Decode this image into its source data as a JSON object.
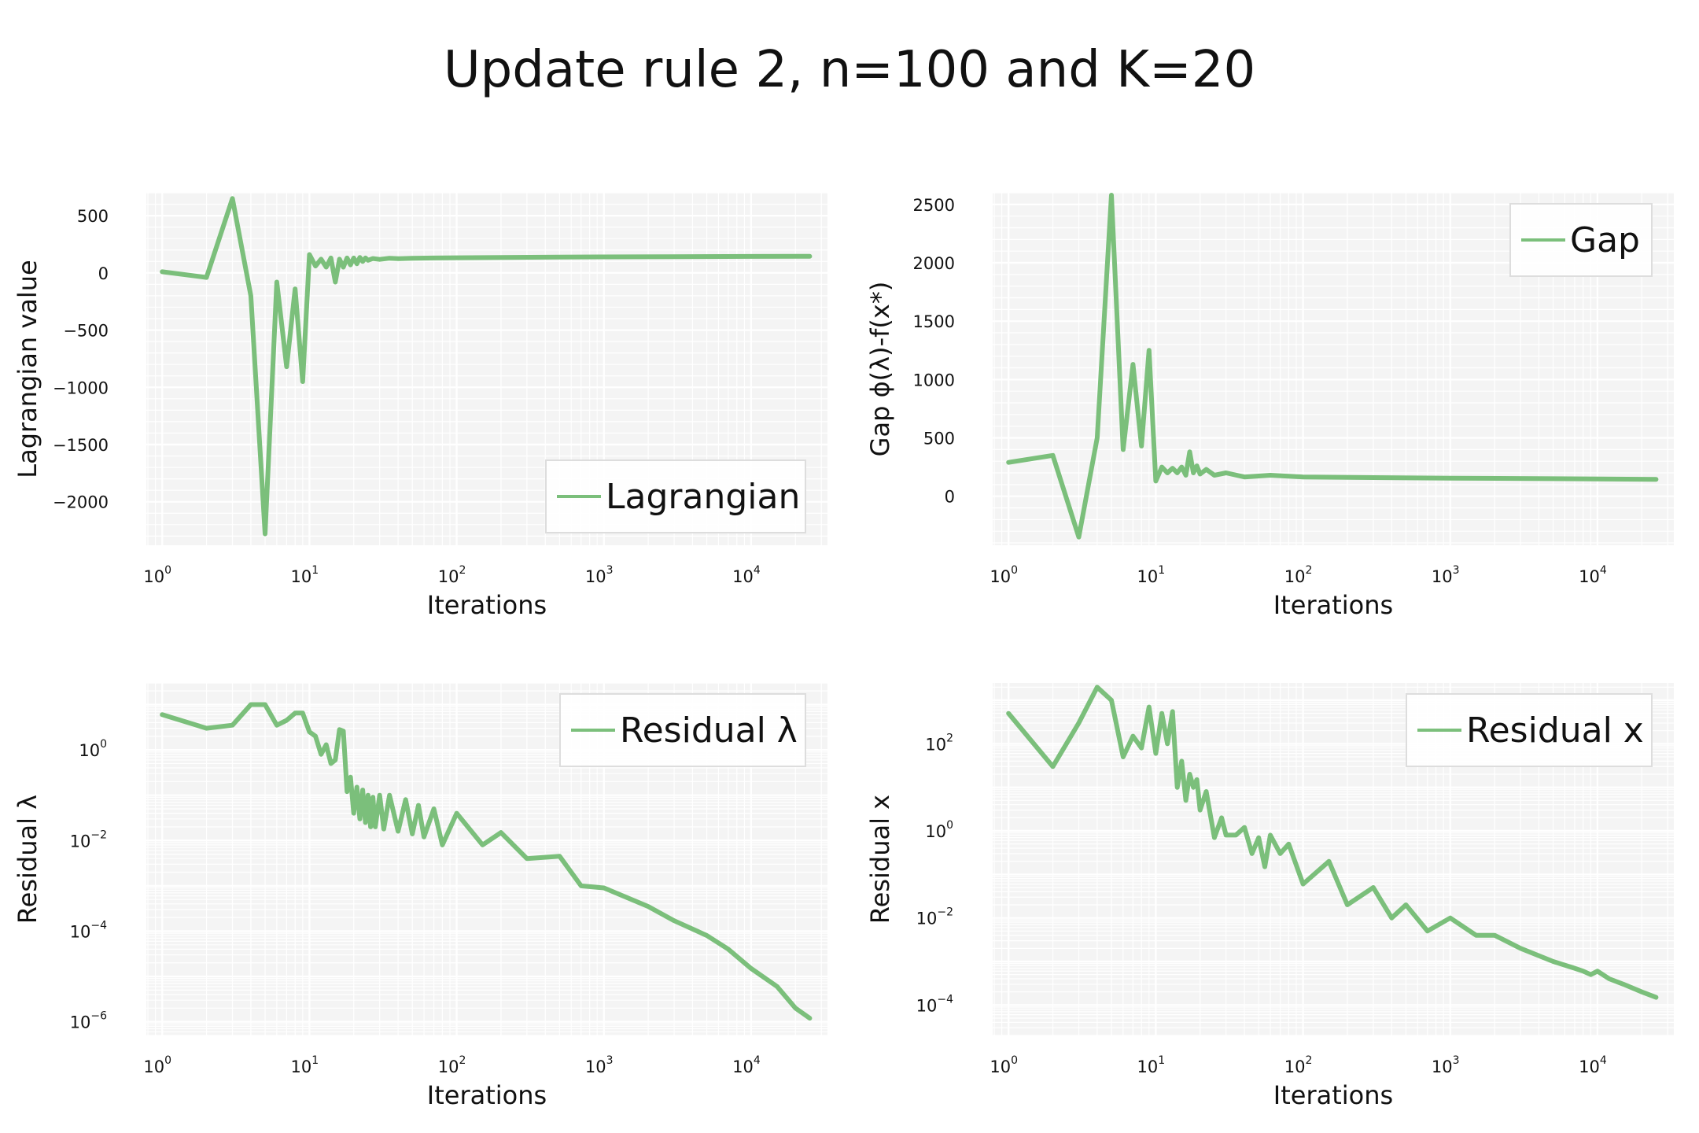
{
  "figure": {
    "title": "Update rule 2, n=100 and K=20"
  },
  "colors": {
    "line": "#7bbf7b",
    "plot_bg": "#f4f4f4",
    "grid": "#ffffff",
    "legend_edge": "#dddddd"
  },
  "chart_data": [
    {
      "type": "line",
      "xlabel": "Iterations",
      "ylabel": "Lagrangian value",
      "xscale": "log",
      "yscale": "linear",
      "xlim": [
        0.78,
        33000
      ],
      "ylim": [
        -2380,
        700
      ],
      "xticks": [
        1,
        10,
        100,
        1000,
        10000
      ],
      "yticks": [
        500,
        0,
        -500,
        -1000,
        -1500,
        -2000
      ],
      "ytick_labels": [
        "500",
        "0",
        "−5 0 0",
        "−1000",
        "−1500",
        "−2000"
      ],
      "grid": true,
      "legend_position": "lower-right",
      "series": [
        {
          "name": "Lagrangian",
          "x": [
            1,
            2,
            3,
            4,
            5,
            6,
            7,
            8,
            9,
            10,
            11,
            12,
            13,
            14,
            15,
            16,
            17,
            18,
            19,
            20,
            21,
            22,
            23,
            24,
            25,
            27,
            30,
            35,
            40,
            50,
            70,
            100,
            200,
            500,
            1000,
            3000,
            10000,
            25000
          ],
          "y": [
            10,
            -40,
            650,
            -200,
            -2280,
            -80,
            -820,
            -140,
            -950,
            160,
            60,
            120,
            50,
            130,
            -80,
            120,
            50,
            130,
            70,
            130,
            80,
            135,
            100,
            130,
            110,
            125,
            118,
            128,
            124,
            128,
            130,
            132,
            135,
            138,
            140,
            142,
            144,
            145
          ]
        }
      ]
    },
    {
      "type": "line",
      "xlabel": "Iterations",
      "ylabel": "Gap ϕ(λ)-f(x*)",
      "xscale": "log",
      "yscale": "linear",
      "xlim": [
        0.78,
        33000
      ],
      "ylim": [
        -420,
        2600
      ],
      "xticks": [
        1,
        10,
        100,
        1000,
        10000
      ],
      "yticks": [
        2500,
        2000,
        1500,
        1000,
        500,
        0
      ],
      "ytick_labels": [
        "2500",
        "2000",
        "1500",
        "1000",
        "500",
        "0"
      ],
      "grid": true,
      "legend_position": "upper-right",
      "series": [
        {
          "name": "Gap",
          "x": [
            1,
            2,
            3,
            4,
            5,
            6,
            7,
            8,
            9,
            10,
            11,
            12,
            13,
            14,
            15,
            16,
            17,
            18,
            19,
            20,
            22,
            25,
            30,
            40,
            60,
            100,
            300,
            1000,
            5000,
            25000
          ],
          "y": [
            290,
            350,
            -350,
            500,
            2580,
            400,
            1130,
            430,
            1250,
            130,
            250,
            200,
            240,
            200,
            250,
            180,
            380,
            200,
            260,
            190,
            230,
            180,
            200,
            165,
            180,
            165,
            160,
            155,
            150,
            145
          ]
        }
      ]
    },
    {
      "type": "line",
      "xlabel": "Iterations",
      "ylabel": "Residual λ",
      "xscale": "log",
      "yscale": "log",
      "xlim": [
        0.78,
        33000
      ],
      "ylim": [
        5e-07,
        30
      ],
      "xticks": [
        1,
        10,
        100,
        1000,
        10000
      ],
      "yticks": [
        1,
        0.01,
        0.0001,
        1e-06
      ],
      "grid": true,
      "legend_position": "upper-right",
      "series": [
        {
          "name": "Residual λ",
          "x": [
            1,
            2,
            3,
            4,
            5,
            6,
            7,
            8,
            9,
            10,
            11,
            12,
            13,
            14,
            15,
            16,
            17,
            18,
            19,
            20,
            21,
            22,
            23,
            24,
            25,
            26,
            27,
            28,
            30,
            32,
            35,
            40,
            45,
            50,
            55,
            60,
            70,
            80,
            100,
            150,
            200,
            300,
            500,
            700,
            1000,
            2000,
            3000,
            5000,
            7000,
            10000,
            15000,
            20000,
            25000
          ],
          "y": [
            6,
            3,
            3.5,
            10,
            10,
            3.5,
            4.5,
            6.5,
            6.5,
            2.5,
            2.0,
            0.8,
            1.3,
            0.5,
            0.6,
            2.8,
            2.6,
            0.12,
            0.25,
            0.04,
            0.15,
            0.03,
            0.13,
            0.025,
            0.1,
            0.02,
            0.09,
            0.02,
            0.1,
            0.018,
            0.1,
            0.016,
            0.08,
            0.014,
            0.06,
            0.012,
            0.05,
            0.008,
            0.04,
            0.008,
            0.015,
            0.004,
            0.0045,
            0.001,
            0.0009,
            0.00035,
            0.00017,
            8e-05,
            4e-05,
            1.5e-05,
            6e-06,
            2e-06,
            1.2e-06
          ]
        }
      ]
    },
    {
      "type": "line",
      "xlabel": "Iterations",
      "ylabel": "Residual x",
      "xscale": "log",
      "yscale": "log",
      "xlim": [
        0.78,
        33000
      ],
      "ylim": [
        2e-05,
        2500
      ],
      "xticks": [
        1,
        10,
        100,
        1000,
        10000
      ],
      "yticks": [
        100,
        1,
        0.01,
        0.0001
      ],
      "grid": true,
      "legend_position": "upper-right",
      "series": [
        {
          "name": "Residual x",
          "x": [
            1,
            2,
            3,
            4,
            5,
            6,
            7,
            8,
            9,
            10,
            11,
            12,
            13,
            14,
            15,
            16,
            17,
            18,
            19,
            20,
            22,
            25,
            28,
            30,
            35,
            40,
            45,
            50,
            55,
            60,
            70,
            80,
            100,
            150,
            200,
            300,
            400,
            500,
            700,
            1000,
            1500,
            2000,
            3000,
            5000,
            7000,
            8000,
            9000,
            10000,
            12000,
            15000,
            20000,
            25000
          ],
          "y": [
            500,
            30,
            300,
            2000,
            1000,
            50,
            150,
            80,
            700,
            60,
            500,
            100,
            550,
            10,
            40,
            5,
            20,
            10,
            15,
            3,
            8,
            0.7,
            2,
            0.8,
            0.8,
            1.2,
            0.3,
            0.7,
            0.15,
            0.8,
            0.3,
            0.5,
            0.06,
            0.2,
            0.02,
            0.05,
            0.01,
            0.02,
            0.005,
            0.01,
            0.004,
            0.004,
            0.002,
            0.001,
            0.0007,
            0.0006,
            0.0005,
            0.0006,
            0.0004,
            0.0003,
            0.0002,
            0.00015
          ]
        }
      ]
    }
  ]
}
